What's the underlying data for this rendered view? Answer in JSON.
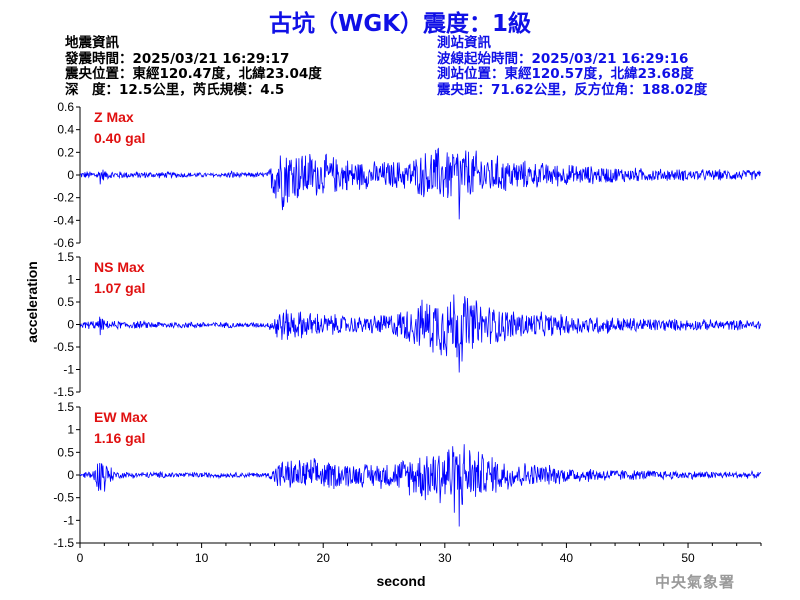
{
  "title": "古坑（WGK）震度：1級",
  "info_left": {
    "header": "地震資訊",
    "origin_time": "發震時間：2025/03/21 16:29:17",
    "epicenter": "震央位置：東經120.47度，北緯23.04度",
    "depth_magnitude": "深　度：12.5公里，芮氏規模：4.5"
  },
  "info_right": {
    "header": "測站資訊",
    "wave_start": "波線起始時間：2025/03/21 16:29:16",
    "station_position": "測站位置：東經120.57度，北緯23.68度",
    "distance_azimuth": "震央距：71.62公里，反方位角：188.02度"
  },
  "watermark": "中央氣象署",
  "chart_data": {
    "type": "line",
    "xlabel": "second",
    "ylabel": "acceleration",
    "xlim": [
      0,
      56
    ],
    "x_ticks": [
      "0",
      "10",
      "20",
      "30",
      "40",
      "50"
    ],
    "line_color": "#0000ff",
    "label_color": "#e01010",
    "panels": [
      {
        "name": "Z",
        "max_label": "Z Max",
        "max_value": "0.40 gal",
        "peak": 0.4,
        "ylim": [
          -0.6,
          0.6
        ],
        "y_ticks": [
          "0.6",
          "0.4",
          "0.2",
          "0",
          "-0.2",
          "-0.4",
          "-0.6"
        ],
        "envelope": [
          [
            0,
            0.03
          ],
          [
            1.5,
            0.05
          ],
          [
            1.7,
            0.12
          ],
          [
            2,
            0.04
          ],
          [
            12,
            0.02
          ],
          [
            12.5,
            0.05
          ],
          [
            13.2,
            0.02
          ],
          [
            15.5,
            0.03
          ],
          [
            16.2,
            0.38
          ],
          [
            17.5,
            0.28
          ],
          [
            20,
            0.2
          ],
          [
            24,
            0.13
          ],
          [
            27,
            0.15
          ],
          [
            29,
            0.27
          ],
          [
            31,
            0.3
          ],
          [
            33,
            0.22
          ],
          [
            37,
            0.13
          ],
          [
            42,
            0.09
          ],
          [
            48,
            0.06
          ],
          [
            56,
            0.05
          ]
        ]
      },
      {
        "name": "NS",
        "max_label": "NS Max",
        "max_value": "1.07 gal",
        "peak": 1.07,
        "ylim": [
          -1.5,
          1.5
        ],
        "y_ticks": [
          "1.5",
          "1",
          "0.5",
          "0",
          "-0.5",
          "-1",
          "-1.5"
        ],
        "envelope": [
          [
            0,
            0.08
          ],
          [
            1.5,
            0.12
          ],
          [
            1.7,
            0.28
          ],
          [
            2,
            0.1
          ],
          [
            15.5,
            0.06
          ],
          [
            16.2,
            0.45
          ],
          [
            18,
            0.35
          ],
          [
            23,
            0.2
          ],
          [
            26,
            0.32
          ],
          [
            29,
            0.72
          ],
          [
            31,
            0.95
          ],
          [
            33,
            0.55
          ],
          [
            36,
            0.35
          ],
          [
            40,
            0.25
          ],
          [
            46,
            0.18
          ],
          [
            50,
            0.14
          ],
          [
            56,
            0.12
          ]
        ]
      },
      {
        "name": "EW",
        "max_label": "EW Max",
        "max_value": "1.16 gal",
        "peak": 1.16,
        "ylim": [
          -1.5,
          1.5
        ],
        "y_ticks": [
          "1.5",
          "1",
          "0.5",
          "0",
          "-0.5",
          "-1",
          "-1.5"
        ],
        "envelope": [
          [
            0,
            0.06
          ],
          [
            1.3,
            0.15
          ],
          [
            1.7,
            0.75
          ],
          [
            2.2,
            0.3
          ],
          [
            3,
            0.08
          ],
          [
            15.5,
            0.06
          ],
          [
            16.2,
            0.35
          ],
          [
            19,
            0.4
          ],
          [
            23,
            0.28
          ],
          [
            26,
            0.35
          ],
          [
            29,
            0.72
          ],
          [
            31,
            0.95
          ],
          [
            33,
            0.55
          ],
          [
            36,
            0.33
          ],
          [
            40,
            0.2
          ],
          [
            46,
            0.12
          ],
          [
            50,
            0.1
          ],
          [
            56,
            0.08
          ]
        ]
      }
    ]
  }
}
